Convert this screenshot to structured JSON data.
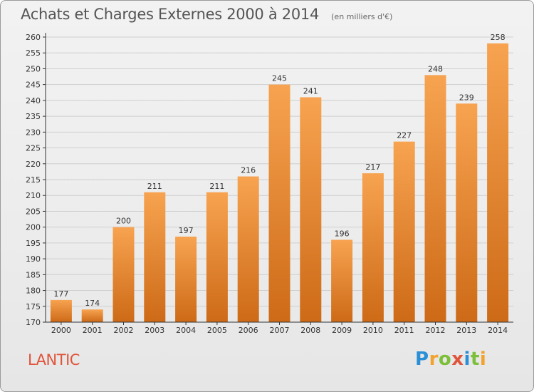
{
  "header": {
    "title": "Achats et Charges Externes 2000 à 2014",
    "subtitle": "(en milliers d'€)"
  },
  "footer": {
    "place": "LANTIC",
    "logo_text": "Proxiti",
    "logo_colors": [
      "#2a8fd6",
      "#f2a230",
      "#7cbf3a",
      "#e0543a",
      "#2a8fd6",
      "#7cbf3a",
      "#f2a230"
    ]
  },
  "colors": {
    "bar_top": "#f7a350",
    "bar_bottom": "#cd6a17",
    "grid": "#cfcfcf",
    "axis": "#333333",
    "label": "#333333"
  },
  "chart_data": {
    "type": "bar",
    "categories": [
      "2000",
      "2001",
      "2002",
      "2003",
      "2004",
      "2005",
      "2006",
      "2007",
      "2008",
      "2009",
      "2010",
      "2011",
      "2012",
      "2013",
      "2014"
    ],
    "values": [
      177,
      174,
      200,
      211,
      197,
      211,
      216,
      245,
      241,
      196,
      217,
      227,
      248,
      239,
      258
    ],
    "title": "Achats et Charges Externes 2000 à 2014",
    "subtitle": "(en milliers d'€)",
    "xlabel": "",
    "ylabel": "",
    "ylim": [
      170,
      260
    ],
    "ytick_step": 5,
    "grid": true,
    "data_labels": true
  }
}
